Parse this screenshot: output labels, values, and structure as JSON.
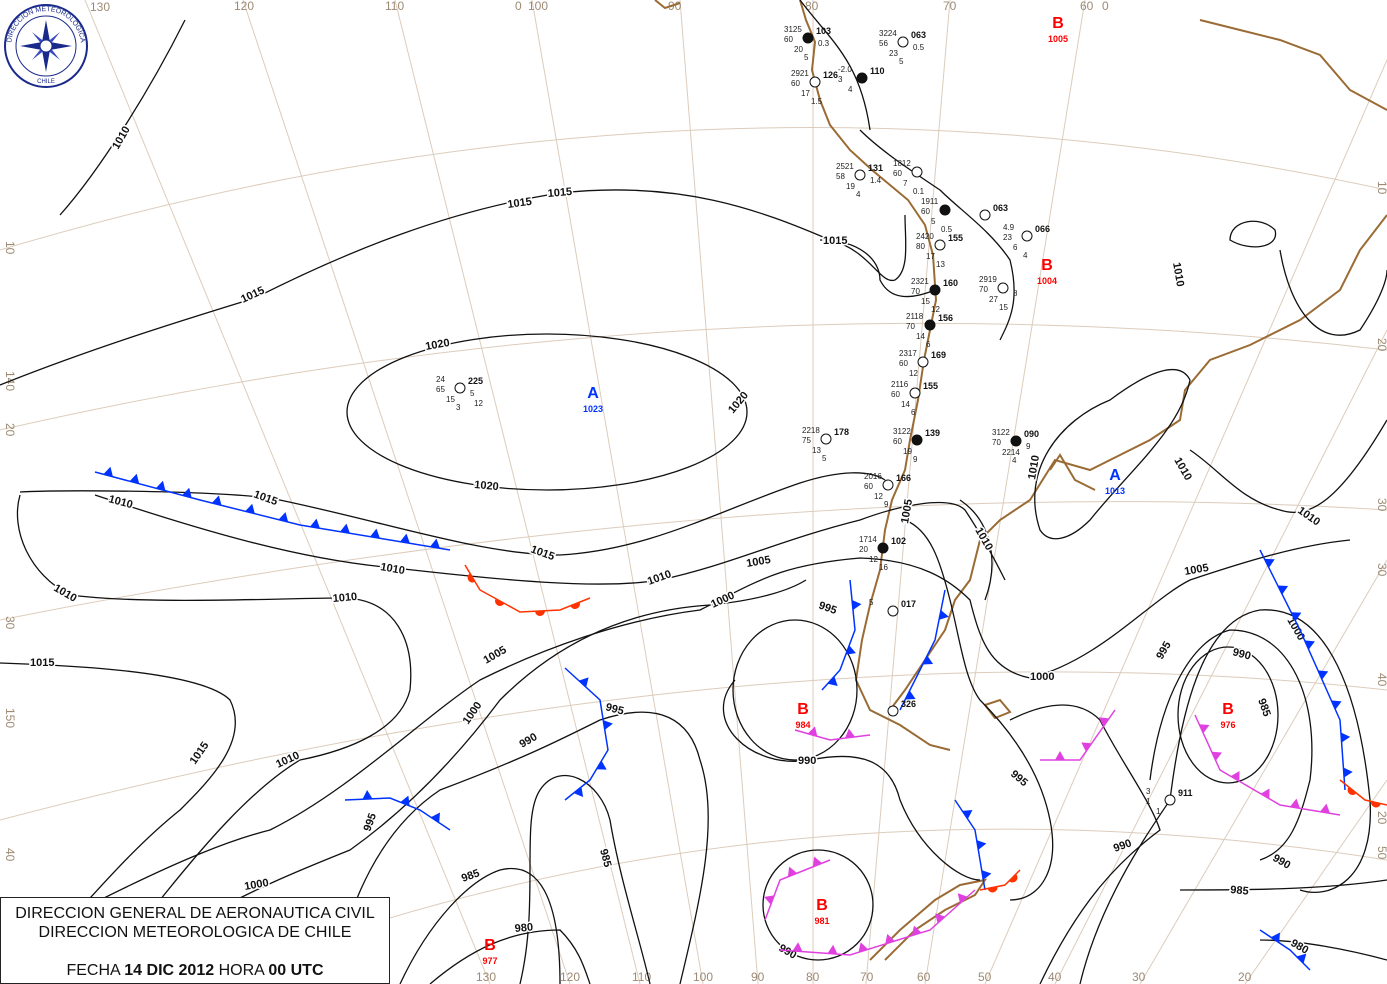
{
  "logo": {
    "text_top": "DIRECCION METEOROLOGICA",
    "text_bottom": "CHILE"
  },
  "caption": {
    "line1": "DIRECCION GENERAL DE AERONAUTICA CIVIL",
    "line2": "DIRECCION METEOROLOGICA DE CHILE",
    "date_label": "FECHA",
    "date": "14 DIC 2012",
    "hour_label": "HORA",
    "hour": "00 UTC"
  },
  "colors": {
    "high": "#0033ff",
    "low": "#ff0000",
    "cold_front": "#0033ff",
    "warm_front": "#ff3300",
    "occluded_front": "#e040e0",
    "coastline": "#9a6b34",
    "graticule": "#dcccbc"
  },
  "graticule_labels": {
    "top": [
      "130",
      "120",
      "110",
      "0",
      "100",
      "90",
      "80",
      "70",
      "60",
      "0"
    ],
    "bottom": [
      "130",
      "120",
      "110",
      "100",
      "90",
      "80",
      "70",
      "60",
      "50",
      "40",
      "30",
      "20"
    ],
    "left": [
      "10",
      "140",
      "20",
      "30",
      "150",
      "40"
    ],
    "right": [
      "10",
      "20",
      "30",
      "30",
      "40",
      "20",
      "50"
    ]
  },
  "pressure_centers": [
    {
      "type": "B",
      "value": "1005"
    },
    {
      "type": "B",
      "value": "1004"
    },
    {
      "type": "A",
      "value": "1023"
    },
    {
      "type": "A",
      "value": "1013"
    },
    {
      "type": "B",
      "value": "984"
    },
    {
      "type": "B",
      "value": "976"
    },
    {
      "type": "B",
      "value": "981"
    },
    {
      "type": "B",
      "value": "977"
    }
  ],
  "isobar_labels": [
    "1010",
    "1015",
    "1015",
    "1015",
    "1015",
    "1020",
    "1020",
    "1020",
    "1010",
    "1015",
    "1015",
    "1010",
    "1010",
    "1010",
    "1010",
    "1015",
    "1015",
    "1005",
    "1005",
    "1000",
    "1000",
    "995",
    "995",
    "990",
    "990",
    "995",
    "985",
    "985",
    "990",
    "980",
    "1000",
    "1010",
    "1010",
    "1005",
    "1010",
    "1010",
    "1010",
    "1000",
    "995",
    "985",
    "990",
    "995",
    "1005",
    "1000",
    "990",
    "990",
    "985",
    "980",
    "1010"
  ],
  "stations": [
    {
      "id": "103",
      "vals": [
        "3125",
        "60",
        "20",
        "5",
        "0.3"
      ]
    },
    {
      "id": "063",
      "vals": [
        "3224",
        "56",
        "23",
        "5",
        "0.5"
      ]
    },
    {
      "id": "126",
      "vals": [
        "2921",
        "60",
        "17",
        "1.5"
      ]
    },
    {
      "id": "110",
      "vals": [
        "-2.0",
        "3",
        "4"
      ]
    },
    {
      "id": "131",
      "vals": [
        "2521",
        "58",
        "19",
        "4",
        "1.4"
      ]
    },
    {
      "id": "",
      "vals": [
        "1812",
        "60",
        "7",
        "0.1"
      ]
    },
    {
      "id": "",
      "vals": [
        "1911",
        "60",
        "5",
        "0.5"
      ]
    },
    {
      "id": "063",
      "vals": []
    },
    {
      "id": "155",
      "vals": [
        "2420",
        "80",
        "17",
        "13"
      ]
    },
    {
      "id": "160",
      "vals": [
        "2321",
        "70",
        "15",
        "12"
      ]
    },
    {
      "id": "066",
      "vals": [
        "4.9",
        "23",
        "6",
        "4"
      ]
    },
    {
      "id": "",
      "vals": [
        "2919",
        "70",
        "27",
        "15",
        "8"
      ]
    },
    {
      "id": "156",
      "vals": [
        "2118",
        "70",
        "14",
        "6"
      ]
    },
    {
      "id": "169",
      "vals": [
        "2317",
        "60",
        "12"
      ]
    },
    {
      "id": "155",
      "vals": [
        "2116",
        "60",
        "14",
        "6"
      ]
    },
    {
      "id": "139",
      "vals": [
        "3122",
        "60",
        "19",
        "9"
      ]
    },
    {
      "id": "178",
      "vals": [
        "2218",
        "75",
        "13",
        "5"
      ]
    },
    {
      "id": "166",
      "vals": [
        "2016",
        "60",
        "12",
        "9"
      ]
    },
    {
      "id": "102",
      "vals": [
        "1714",
        "20",
        "12",
        "16"
      ]
    },
    {
      "id": "017",
      "vals": [
        "5"
      ]
    },
    {
      "id": "326",
      "vals": []
    },
    {
      "id": "090",
      "vals": [
        "3122",
        "70",
        "2214",
        "4",
        "9"
      ]
    },
    {
      "id": "225",
      "vals": [
        "24",
        "65",
        "15",
        "3",
        "5",
        "12"
      ]
    },
    {
      "id": "911",
      "vals": [
        "3",
        "1",
        "1"
      ]
    }
  ]
}
